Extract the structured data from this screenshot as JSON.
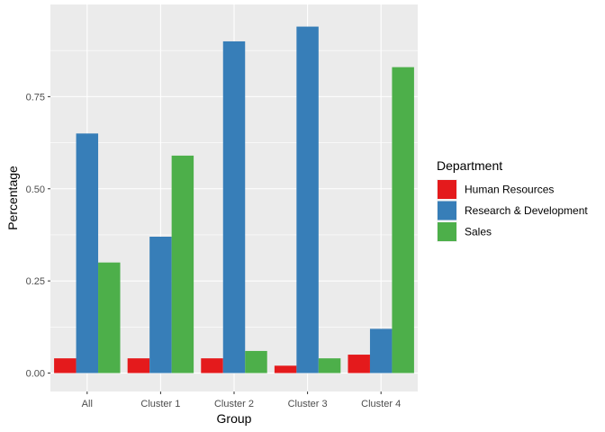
{
  "chart_data": {
    "type": "bar",
    "xlabel": "Group",
    "ylabel": "Percentage",
    "categories": [
      "All",
      "Cluster 1",
      "Cluster 2",
      "Cluster 3",
      "Cluster 4"
    ],
    "ylim": [
      -0.05,
      1.0
    ],
    "yticks": [
      0.0,
      0.25,
      0.5,
      0.75
    ],
    "ytick_labels": [
      "0.00",
      "0.25",
      "0.50",
      "0.75"
    ],
    "grid": true,
    "legend": {
      "title": "Department",
      "position": "right"
    },
    "series": [
      {
        "name": "Human Resources",
        "color": "#e41a1c",
        "values": [
          0.04,
          0.04,
          0.04,
          0.02,
          0.05
        ]
      },
      {
        "name": "Research & Development",
        "color": "#377eb8",
        "values": [
          0.65,
          0.37,
          0.9,
          0.94,
          0.12
        ]
      },
      {
        "name": "Sales",
        "color": "#4daf4a",
        "values": [
          0.3,
          0.59,
          0.06,
          0.04,
          0.83
        ]
      }
    ]
  }
}
